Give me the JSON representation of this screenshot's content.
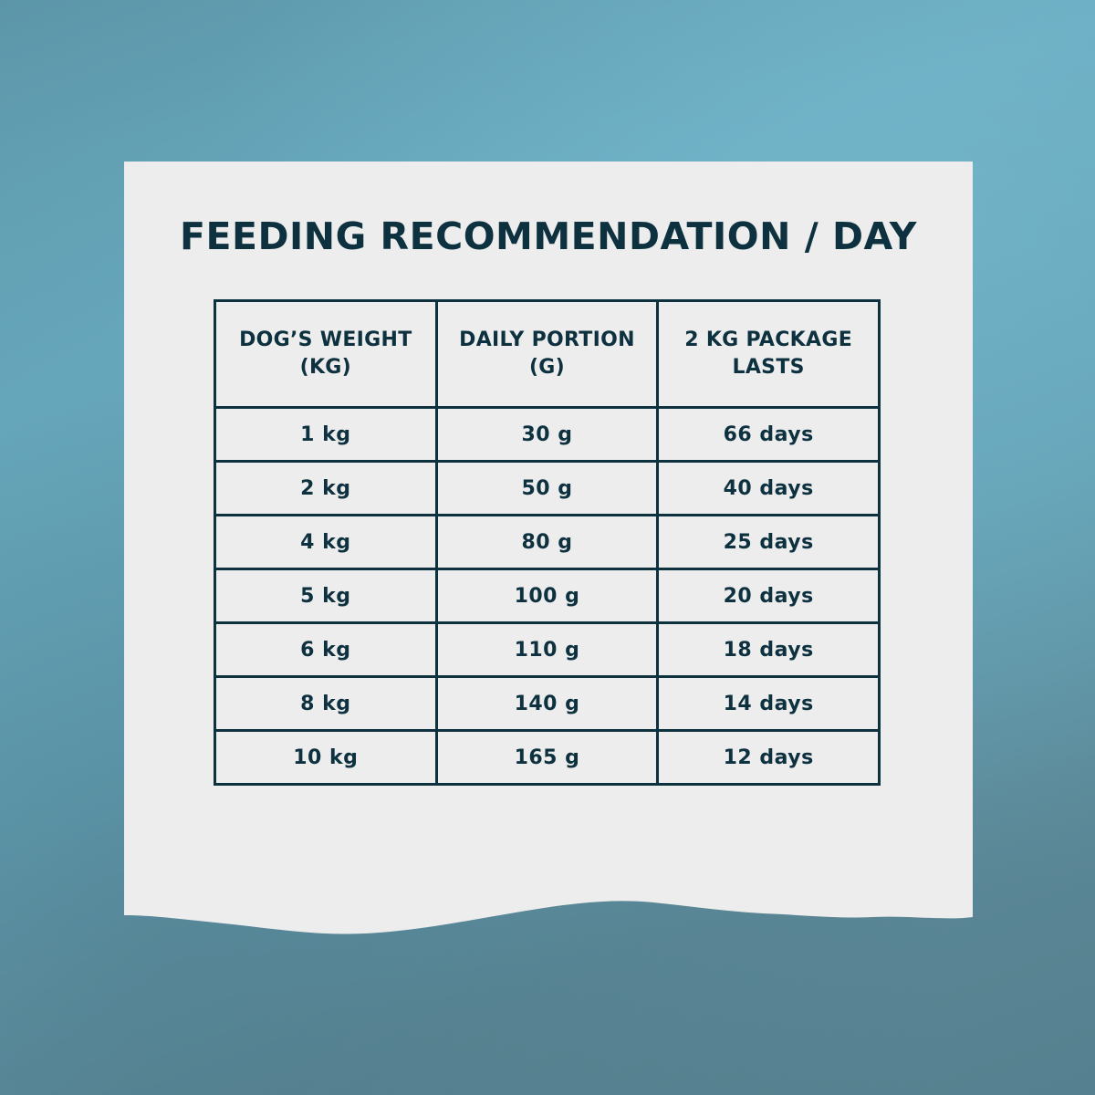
{
  "title": "FEEDING RECOMMENDATION / DAY",
  "table": {
    "headers": [
      [
        "DOG’S WEIGHT",
        "(KG)"
      ],
      [
        "DAILY PORTION",
        "(G)"
      ],
      [
        "2 KG PACKAGE",
        "LASTS"
      ]
    ],
    "rows": [
      [
        "1 kg",
        "30 g",
        "66 days"
      ],
      [
        "2 kg",
        "50 g",
        "40 days"
      ],
      [
        "4 kg",
        "80 g",
        "25 days"
      ],
      [
        "5 kg",
        "100 g",
        "20 days"
      ],
      [
        "6 kg",
        "110 g",
        "18 days"
      ],
      [
        "8 kg",
        "140 g",
        "14 days"
      ],
      [
        "10 kg",
        "165 g",
        "12 days"
      ]
    ]
  },
  "colors": {
    "text": "#0e3140",
    "paper": "#ededed",
    "background": "#62a0b4"
  }
}
